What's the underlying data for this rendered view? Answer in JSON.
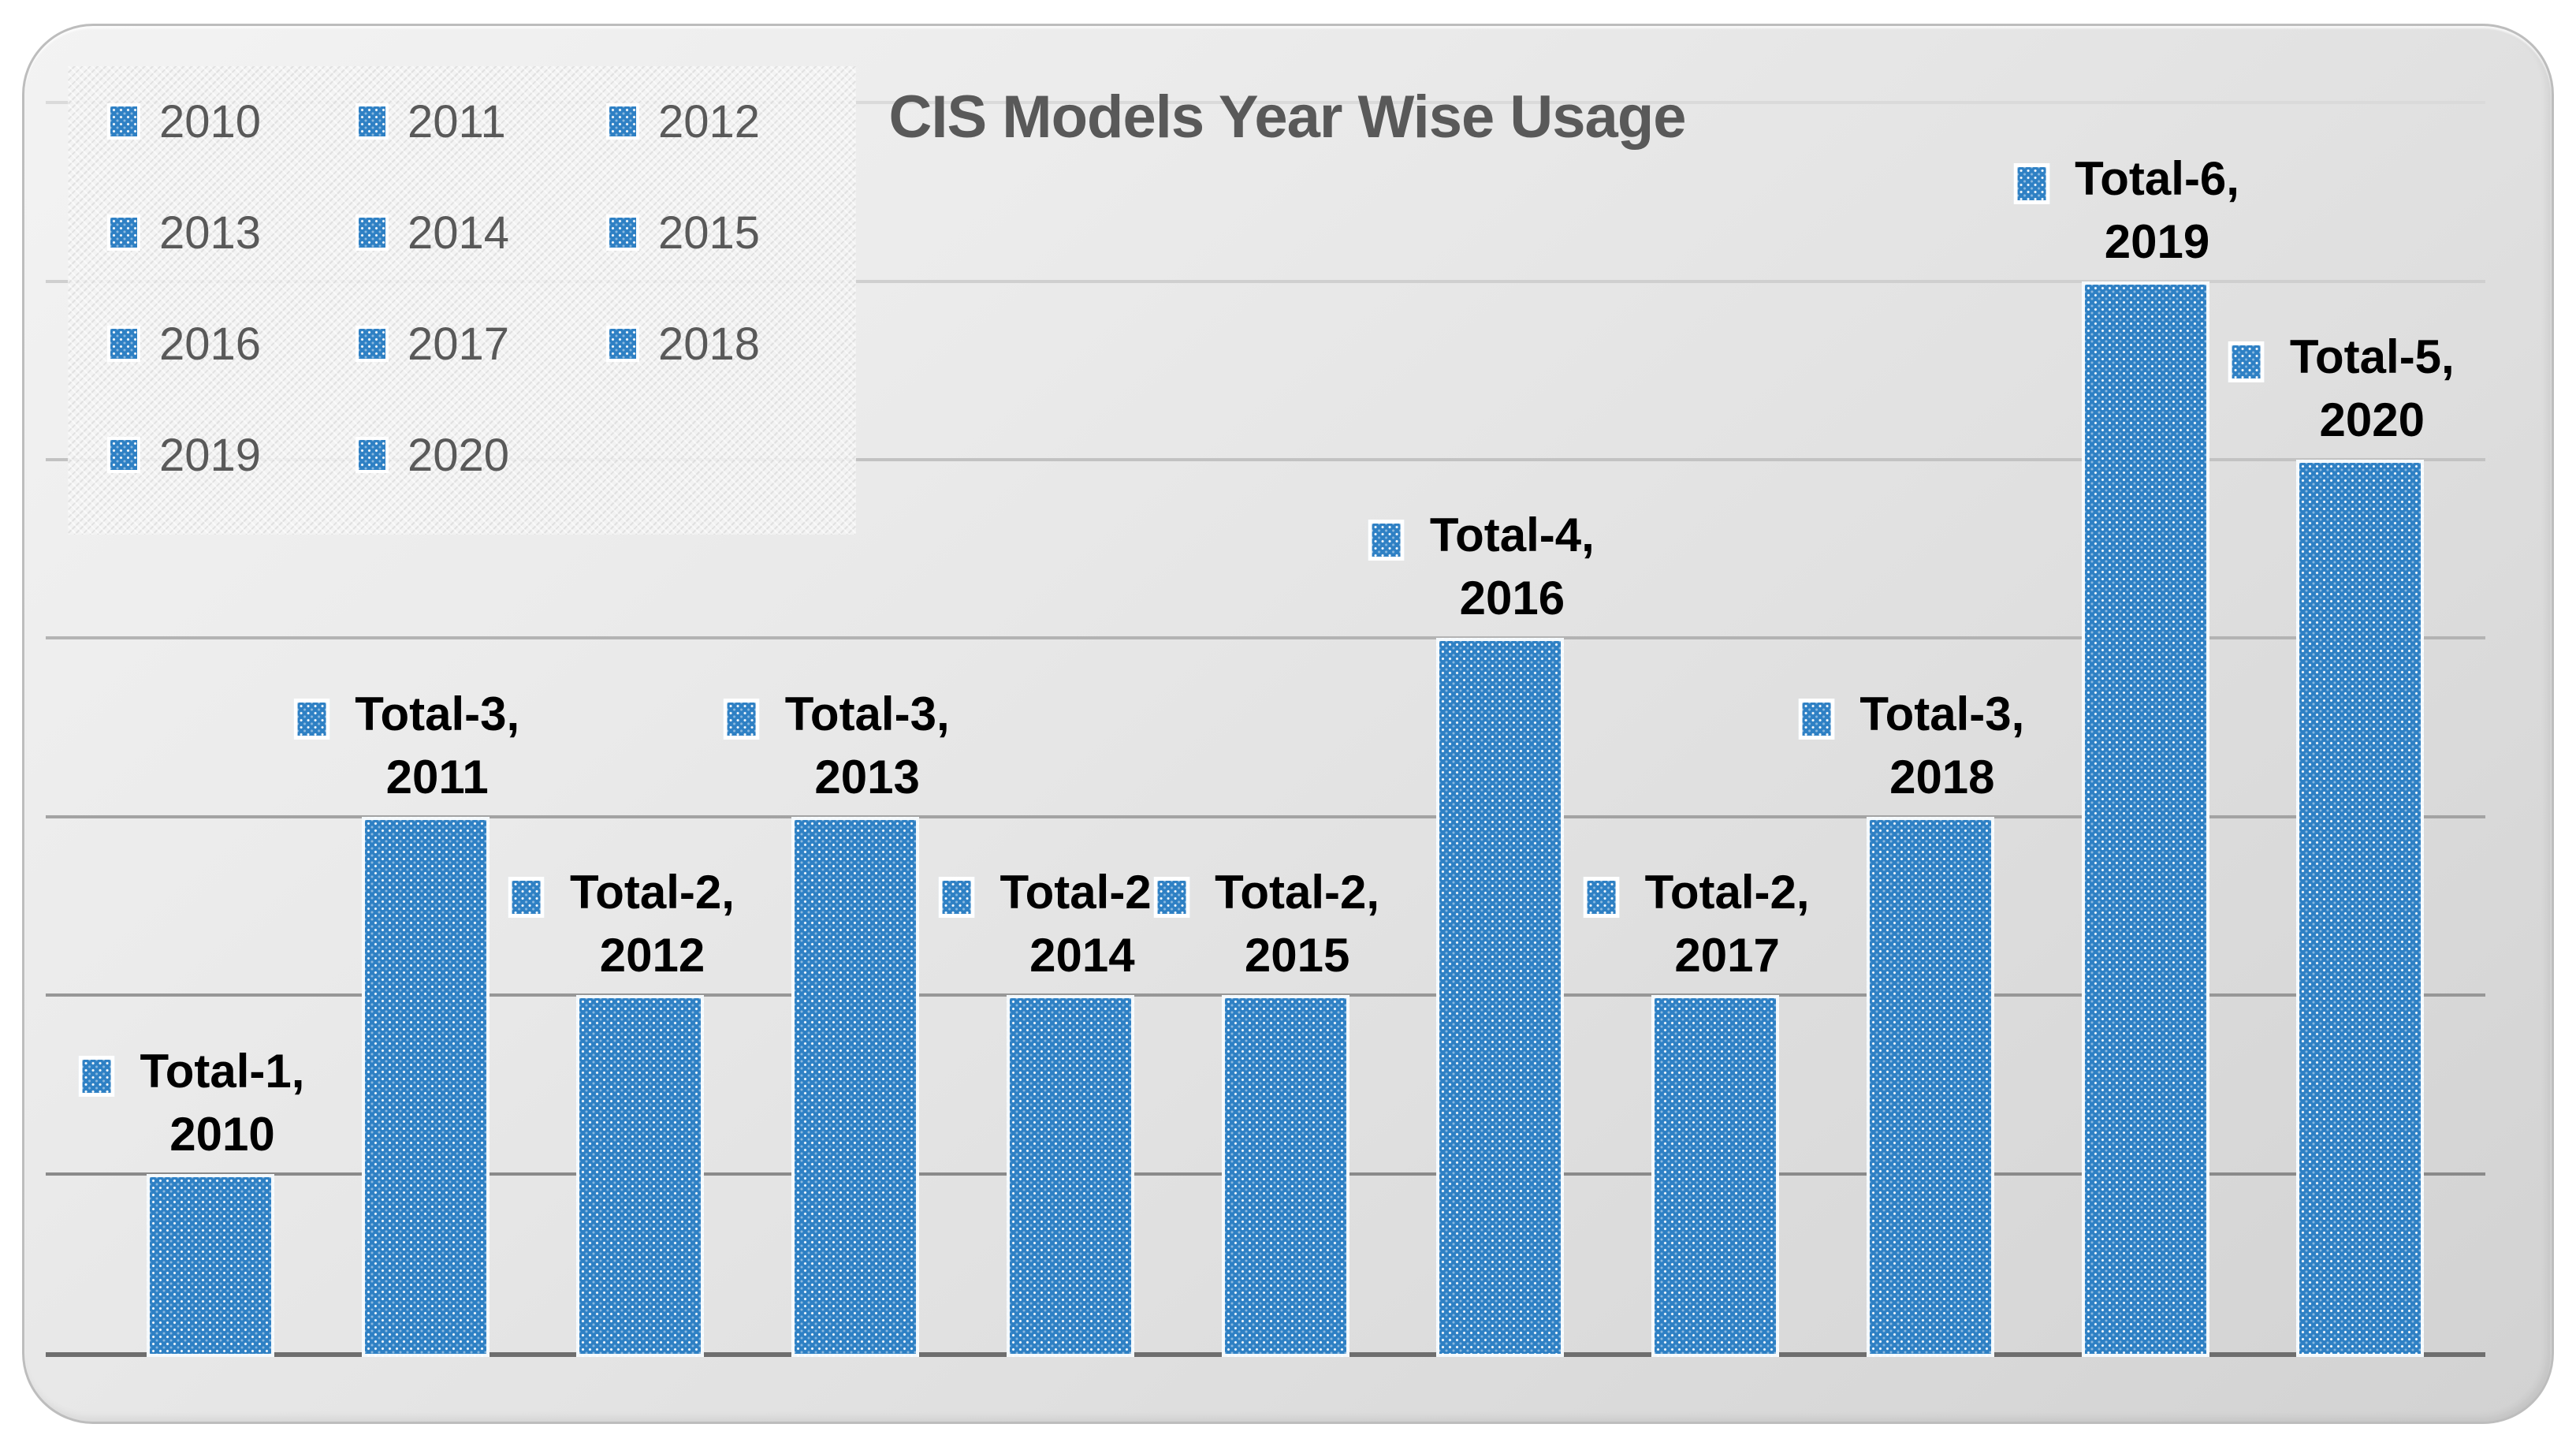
{
  "title": "CIS Models Year Wise Usage",
  "legend": {
    "items": [
      "2010",
      "2011",
      "2012",
      "2013",
      "2014",
      "2015",
      "2016",
      "2017",
      "2018",
      "2019",
      "2020"
    ]
  },
  "chart_data": {
    "type": "bar",
    "title": "CIS Models Year Wise Usage",
    "series_name": "Total",
    "categories": [
      "2010",
      "2011",
      "2012",
      "2013",
      "2014",
      "2015",
      "2016",
      "2017",
      "2018",
      "2019",
      "2020"
    ],
    "values": [
      1,
      3,
      2,
      3,
      2,
      2,
      4,
      2,
      3,
      6,
      5
    ],
    "data_labels": [
      {
        "line1": "Total-1,",
        "line2": "2010"
      },
      {
        "line1": "Total-3,",
        "line2": "2011"
      },
      {
        "line1": "Total-2,",
        "line2": "2012"
      },
      {
        "line1": "Total-3,",
        "line2": "2013"
      },
      {
        "line1": "Total-2,",
        "line2": "2014"
      },
      {
        "line1": "Total-2,",
        "line2": "2015"
      },
      {
        "line1": "Total-4,",
        "line2": "2016"
      },
      {
        "line1": "Total-2,",
        "line2": "2017"
      },
      {
        "line1": "Total-3,",
        "line2": "2018"
      },
      {
        "line1": "Total-6,",
        "line2": "2019"
      },
      {
        "line1": "Total-5,",
        "line2": "2020"
      }
    ],
    "xlabel": "",
    "ylabel": "",
    "ylim": [
      0,
      7
    ],
    "gridline_values": [
      0,
      1,
      2,
      3,
      4,
      5,
      6,
      7
    ],
    "grid": "horizontal",
    "axis_tick_labels_visible": false,
    "legend_position": "top-left",
    "bar_color": "#2E80C4",
    "bar_texture": "white-dot-halftone"
  },
  "colors": {
    "bar": "#2E80C4",
    "title_text": "#595959",
    "legend_text": "#595959",
    "label_text": "#000000",
    "axis_line": "#6E6E6E",
    "gridline": "#A3A3A3",
    "chart_background_top": "#F3F3F3",
    "chart_background_bottom": "#D2D2D2",
    "page_background": "#FFFFFF"
  }
}
